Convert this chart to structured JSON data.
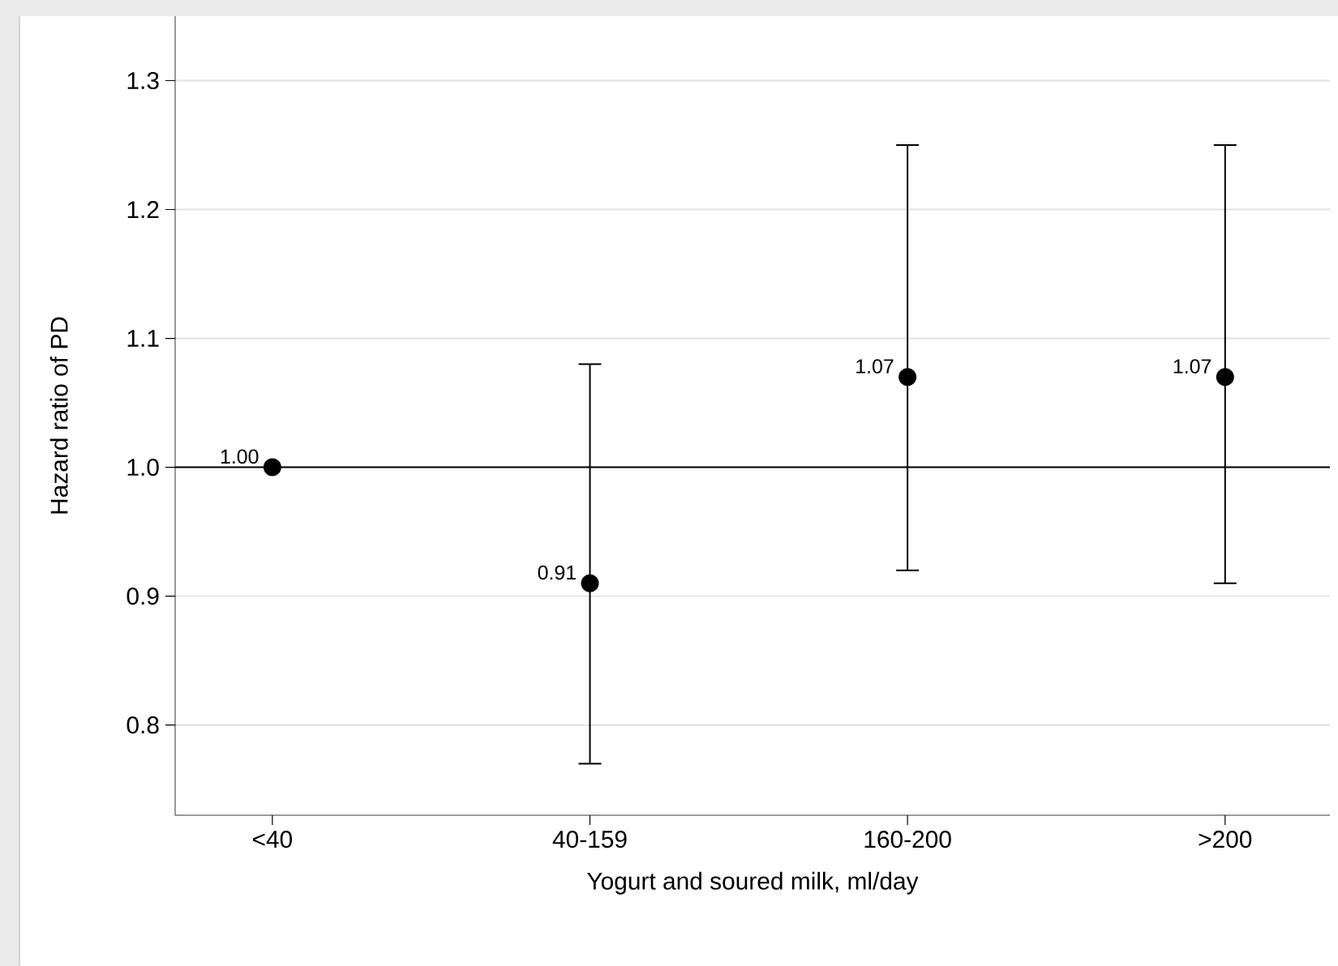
{
  "chart_data": {
    "type": "scatter",
    "categories": [
      "<40",
      "40-159",
      "160-200",
      ">200"
    ],
    "series": [
      {
        "color": "#000000",
        "values": [
          1.0,
          0.91,
          1.07,
          1.07
        ],
        "errors": [
          null,
          [
            0.77,
            1.08
          ],
          [
            0.92,
            1.25
          ],
          [
            0.91,
            1.25
          ]
        ],
        "value_labels": [
          "1.00",
          "0.91",
          "1.07",
          "1.07"
        ]
      }
    ],
    "xlabel": "Yogurt and soured milk, ml/day",
    "ylabel": "Hazard ratio of PD",
    "ylim": [
      0.73,
      1.35
    ],
    "yticks": [
      0.8,
      0.9,
      {
        "value": 1.0,
        "label": "1.0"
      },
      1.1,
      1.2,
      1.3
    ],
    "ref_lines": [
      {
        "axis": "y",
        "value": 1.0,
        "color": "#000000"
      }
    ],
    "grid": "y",
    "marker": "circle"
  }
}
